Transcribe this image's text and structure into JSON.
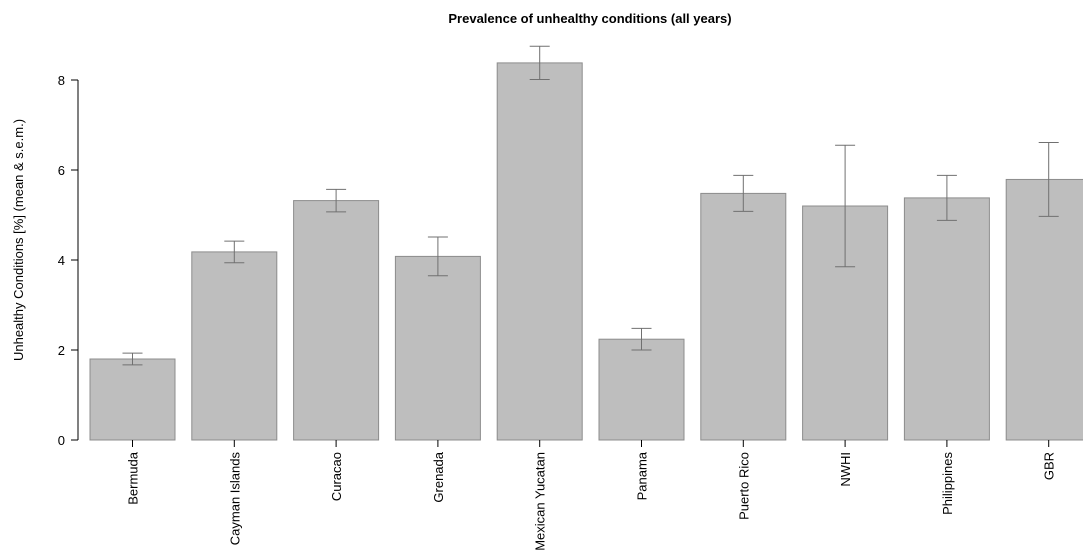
{
  "chart_data": {
    "type": "bar",
    "title": "Prevalence of unhealthy conditions (all years)",
    "xlabel": "",
    "ylabel": "Unhealthy Conditions [%] (mean & s.e.m.)",
    "ylim": [
      0,
      9
    ],
    "yticks": [
      0,
      2,
      4,
      6,
      8
    ],
    "grid": false,
    "categories": [
      "Bermuda",
      "Cayman Islands",
      "Curacao",
      "Grenada",
      "Mexican Yucatan",
      "Panama",
      "Puerto Rico",
      "NWHI",
      "Philippines",
      "GBR"
    ],
    "values": [
      1.8,
      4.18,
      5.32,
      4.08,
      8.38,
      2.24,
      5.48,
      5.2,
      5.38,
      5.79
    ],
    "errors": [
      0.13,
      0.24,
      0.25,
      0.43,
      0.37,
      0.24,
      0.4,
      1.35,
      0.5,
      0.82
    ],
    "colors": {
      "bar_fill": "#bebebe",
      "bar_stroke": "#8c8c8c",
      "error": "#707070"
    }
  }
}
